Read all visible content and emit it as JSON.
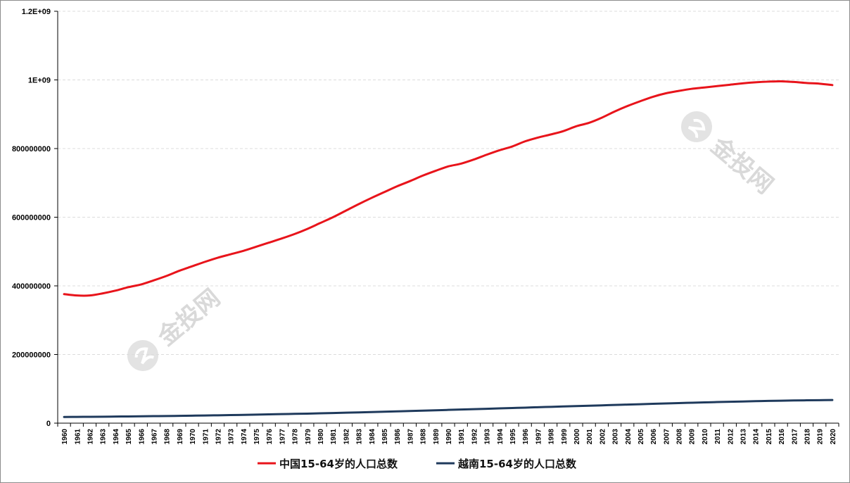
{
  "chart_data": {
    "type": "line",
    "x": [
      1960,
      1961,
      1962,
      1963,
      1964,
      1965,
      1966,
      1967,
      1968,
      1969,
      1970,
      1971,
      1972,
      1973,
      1974,
      1975,
      1976,
      1977,
      1978,
      1979,
      1980,
      1981,
      1982,
      1983,
      1984,
      1985,
      1986,
      1987,
      1988,
      1989,
      1990,
      1991,
      1992,
      1993,
      1994,
      1995,
      1996,
      1997,
      1998,
      1999,
      2000,
      2001,
      2002,
      2003,
      2004,
      2005,
      2006,
      2007,
      2008,
      2009,
      2010,
      2011,
      2012,
      2013,
      2014,
      2015,
      2016,
      2017,
      2018,
      2019,
      2020
    ],
    "x_tick_labels": [
      "1960",
      "1961",
      "1962",
      "1963",
      "1964",
      "1965",
      "1966",
      "1967",
      "1968",
      "1969",
      "1970",
      "1971",
      "1972",
      "1973",
      "1974",
      "1975",
      "1976",
      "1977",
      "1978",
      "1979",
      "1980",
      "1981",
      "1982",
      "1983",
      "1984",
      "1985",
      "1986",
      "1987",
      "1988",
      "1989",
      "1990",
      "1991",
      "1992",
      "1993",
      "1994",
      "1995",
      "1996",
      "1997",
      "1998",
      "1999",
      "2000",
      "2001",
      "2002",
      "2003",
      "2004",
      "2005",
      "2006",
      "2007",
      "2008",
      "2009",
      "2010",
      "2011",
      "2012",
      "2013",
      "2014",
      "2015",
      "2016",
      "2017",
      "2018",
      "2019",
      "2020"
    ],
    "y_tick_labels": [
      "0",
      "200000000",
      "400000000",
      "600000000",
      "800000000",
      "1E+09",
      "1.2E+09"
    ],
    "y_ticks": [
      0,
      200000000,
      400000000,
      600000000,
      800000000,
      1000000000,
      1200000000
    ],
    "ylim": [
      0,
      1200000000
    ],
    "grid": true,
    "legend_position": "bottom",
    "series": [
      {
        "name": "中国15-64岁的人口总数",
        "color": "#e8141b",
        "values": [
          376000000,
          372000000,
          372000000,
          378000000,
          386000000,
          396000000,
          404000000,
          416000000,
          429000000,
          444000000,
          457000000,
          470000000,
          482000000,
          492000000,
          502000000,
          514000000,
          526000000,
          538000000,
          551000000,
          566000000,
          583000000,
          600000000,
          619000000,
          638000000,
          656000000,
          673000000,
          690000000,
          705000000,
          721000000,
          735000000,
          748000000,
          756000000,
          768000000,
          782000000,
          795000000,
          806000000,
          821000000,
          832000000,
          841000000,
          851000000,
          865000000,
          875000000,
          890000000,
          908000000,
          924000000,
          938000000,
          951000000,
          961000000,
          968000000,
          974000000,
          978000000,
          982000000,
          986000000,
          990000000,
          993000000,
          995000000,
          996000000,
          994000000,
          991000000,
          989000000,
          985000000
        ]
      },
      {
        "name": "越南15-64岁的人口总数",
        "color": "#1f3a5c",
        "values": [
          18000000,
          18300000,
          18500000,
          18800000,
          19200000,
          19600000,
          20000000,
          20400000,
          20800000,
          21300000,
          21800000,
          22300000,
          22900000,
          23500000,
          24200000,
          24900000,
          25600000,
          26300000,
          27100000,
          27800000,
          28600000,
          29500000,
          30400000,
          31300000,
          32300000,
          33300000,
          34300000,
          35300000,
          36400000,
          37500000,
          38600000,
          39700000,
          40800000,
          41900000,
          43000000,
          44100000,
          45200000,
          46400000,
          47500000,
          48600000,
          49700000,
          50800000,
          51900000,
          53000000,
          54100000,
          55200000,
          56300000,
          57400000,
          58500000,
          59500000,
          60500000,
          61500000,
          62400000,
          63200000,
          64000000,
          64800000,
          65500000,
          66100000,
          66600000,
          67000000,
          67400000
        ]
      }
    ],
    "watermark": "金投网"
  }
}
